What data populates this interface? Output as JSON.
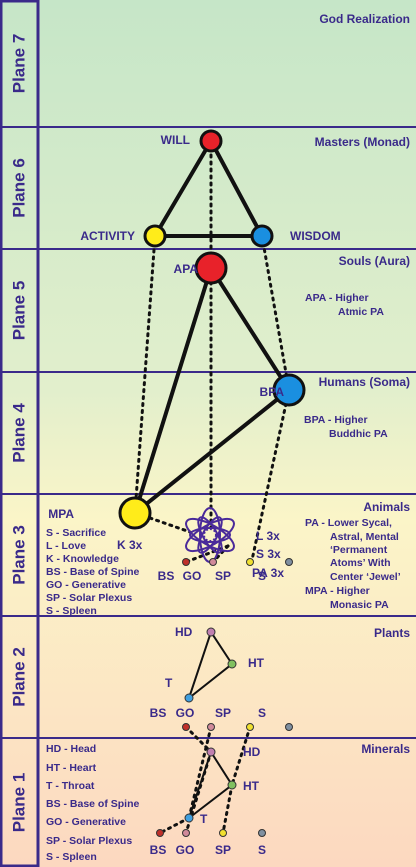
{
  "planes": [
    {
      "label": "Plane 7",
      "title": "God Realization"
    },
    {
      "label": "Plane 6",
      "title": "Masters (Monad)"
    },
    {
      "label": "Plane 5",
      "title": "Souls (Aura)"
    },
    {
      "label": "Plane 4",
      "title": "Humans (Soma)"
    },
    {
      "label": "Plane 3",
      "title": "Animals"
    },
    {
      "label": "Plane 2",
      "title": "Plants"
    },
    {
      "label": "Plane 1",
      "title": "Minerals"
    }
  ],
  "nodes": [
    "WILL",
    "ACTIVITY",
    "WISDOM",
    "APA",
    "BPA",
    "MPA",
    "K 3x",
    "L 3x",
    "S 3x",
    "PA 3x",
    "HD",
    "HT",
    "T",
    "HD",
    "HT",
    "T"
  ],
  "chakras": {
    "plane3": [
      "BS",
      "GO",
      "SP",
      "S"
    ],
    "plane2": [
      "BS",
      "GO",
      "SP",
      "S"
    ],
    "plane1": [
      "BS",
      "GO",
      "SP",
      "S"
    ]
  },
  "notes": {
    "apa": [
      "APA - Higher",
      "Atmic PA"
    ],
    "bpa": [
      "BPA - Higher",
      "Buddhic PA"
    ],
    "animals": [
      "PA - Lower Sycal,",
      "Astral, Mental",
      "‘Permanent",
      "Atoms’ With",
      "Center ‘Jewel’",
      "MPA - Higher",
      "Monasic PA"
    ],
    "legend3": [
      "S - Sacrifice",
      "L - Love",
      "K - Knowledge",
      "BS - Base of Spine",
      "GO - Generative",
      "SP - Solar Plexus",
      "S - Spleen"
    ],
    "legend1": [
      "HD - Head",
      "HT - Heart",
      "T - Throat",
      "BS - Base of Spine",
      "GO - Generative",
      "SP - Solar Plexus",
      "S - Spleen"
    ]
  }
}
